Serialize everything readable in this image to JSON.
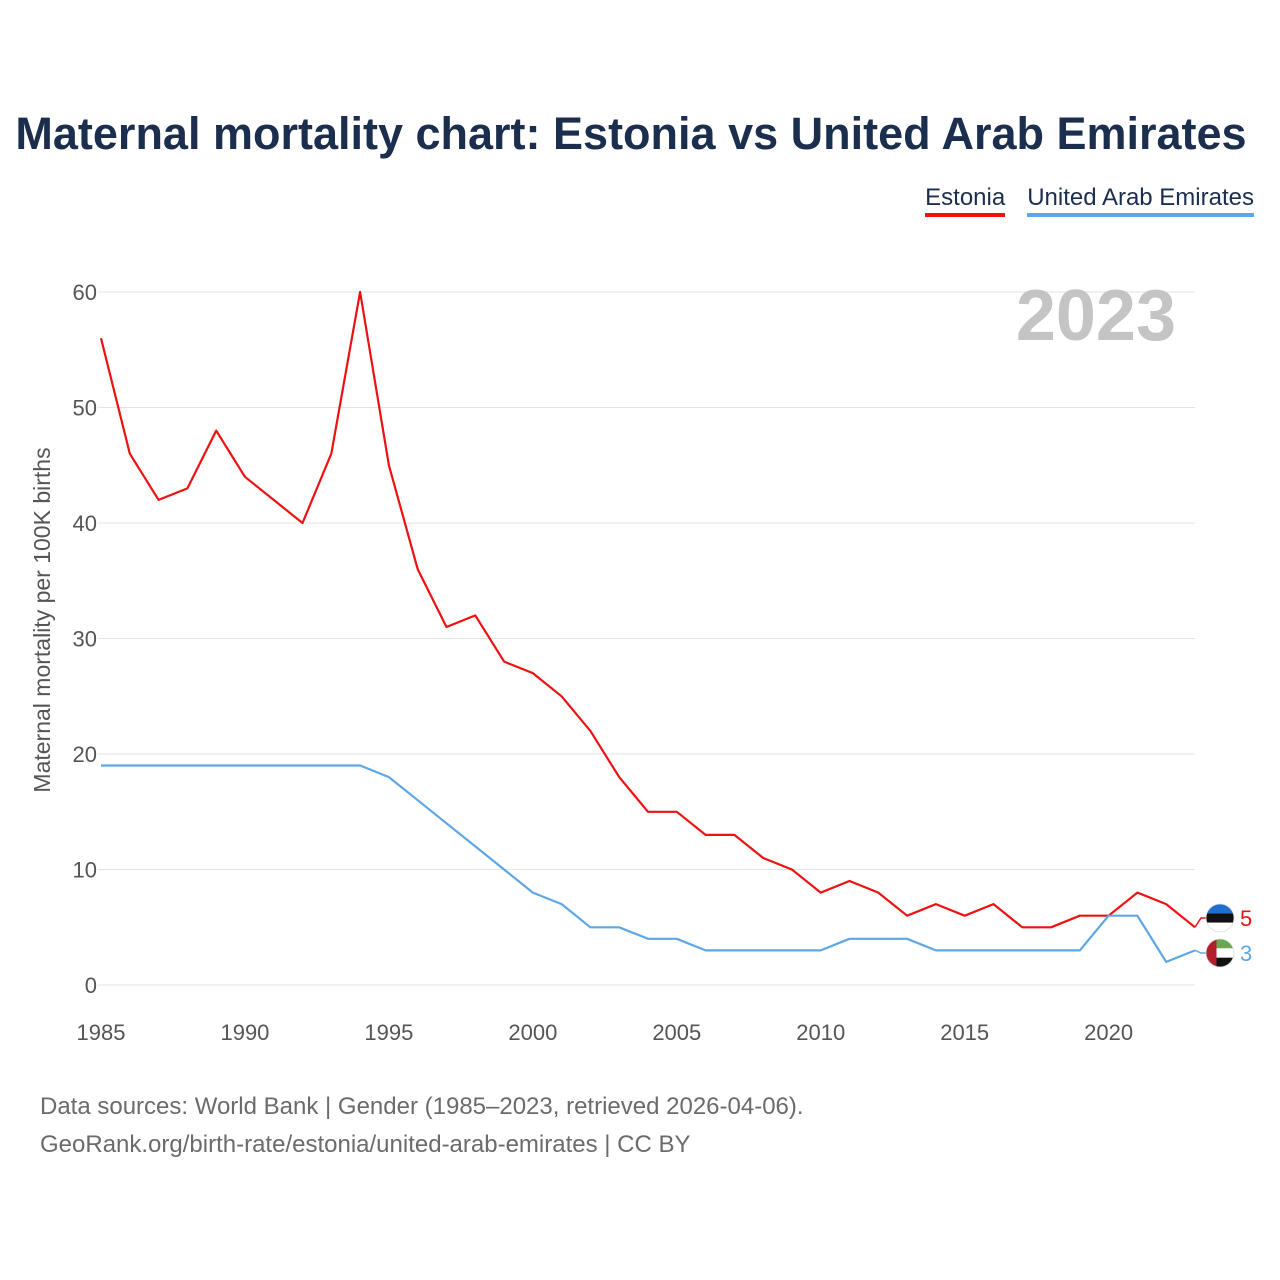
{
  "title": "Maternal mortality chart: Estonia vs United Arab Emirates",
  "legend": [
    {
      "label": "Estonia",
      "color": "#ee1111"
    },
    {
      "label": "United Arab Emirates",
      "color": "#5da7e6"
    }
  ],
  "footer": {
    "line1": "Data sources: World Bank | Gender (1985–2023, retrieved 2026-04-06).",
    "line2": "GeoRank.org/birth-rate/estonia/united-arab-emirates | CC BY"
  },
  "chart_data": {
    "type": "line",
    "title": "Maternal mortality chart: Estonia vs United Arab Emirates",
    "ylabel": "Maternal mortality per 100K births",
    "xlabel": "",
    "year_label": "2023",
    "xlim": [
      1985,
      2023
    ],
    "ylim": [
      0,
      60
    ],
    "x_ticks": [
      1985,
      1990,
      1995,
      2000,
      2005,
      2010,
      2015,
      2020
    ],
    "y_ticks": [
      0,
      10,
      20,
      30,
      40,
      50,
      60
    ],
    "x": [
      1985,
      1986,
      1987,
      1988,
      1989,
      1990,
      1991,
      1992,
      1993,
      1994,
      1995,
      1996,
      1997,
      1998,
      1999,
      2000,
      2001,
      2002,
      2003,
      2004,
      2005,
      2006,
      2007,
      2008,
      2009,
      2010,
      2011,
      2012,
      2013,
      2014,
      2015,
      2016,
      2017,
      2018,
      2019,
      2020,
      2021,
      2022,
      2023
    ],
    "series": [
      {
        "name": "Estonia",
        "color": "#ee1111",
        "end_label": "5",
        "flag": "estonia-flag",
        "values": [
          56,
          46,
          42,
          43,
          48,
          44,
          42,
          40,
          46,
          60,
          45,
          36,
          31,
          32,
          28,
          27,
          25,
          22,
          18,
          15,
          15,
          13,
          13,
          11,
          10,
          8,
          9,
          8,
          6,
          7,
          6,
          7,
          5,
          5,
          6,
          6,
          8,
          7,
          5
        ]
      },
      {
        "name": "United Arab Emirates",
        "color": "#5da7e6",
        "end_label": "3",
        "flag": "uae-flag",
        "values": [
          19,
          19,
          19,
          19,
          19,
          19,
          19,
          19,
          19,
          19,
          18,
          16,
          14,
          12,
          10,
          8,
          7,
          5,
          5,
          4,
          4,
          3,
          3,
          3,
          3,
          3,
          4,
          4,
          4,
          3,
          3,
          3,
          3,
          3,
          3,
          6,
          6,
          2,
          3
        ]
      }
    ],
    "grid": true
  }
}
